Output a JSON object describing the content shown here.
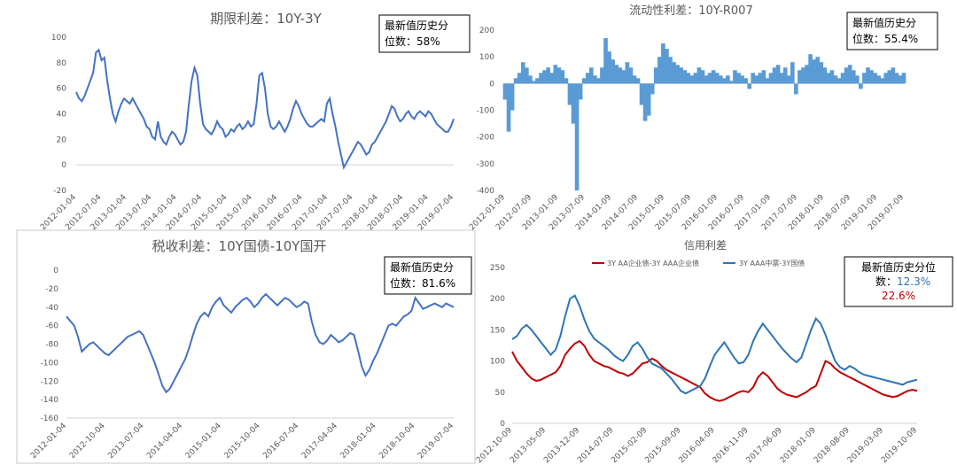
{
  "charts": [
    {
      "type": "line",
      "title": "期限利差：10Y-3Y",
      "ylim": [
        -20,
        100
      ],
      "yticks": [
        -20,
        0,
        20,
        40,
        60,
        80,
        100
      ],
      "xticks": [
        "2012-01-04",
        "2012-07-04",
        "2013-01-04",
        "2013-07-04",
        "2014-01-04",
        "2014-07-04",
        "2015-01-04",
        "2015-07-04",
        "2016-01-04",
        "2016-07-04",
        "2017-01-04",
        "2017-07-04",
        "2018-01-04",
        "2018-07-04",
        "2019-01-04",
        "2019-07-04"
      ],
      "annotation": [
        "最新值历史分",
        "位数：58%"
      ],
      "series": [
        {
          "color": "#4472c4",
          "values": [
            57,
            52,
            50,
            54,
            60,
            66,
            72,
            88,
            90,
            82,
            84,
            66,
            52,
            40,
            34,
            42,
            48,
            52,
            50,
            48,
            52,
            48,
            44,
            40,
            36,
            30,
            28,
            22,
            20,
            34,
            22,
            18,
            16,
            22,
            26,
            24,
            20,
            16,
            18,
            26,
            48,
            66,
            76,
            70,
            48,
            32,
            28,
            26,
            24,
            28,
            34,
            30,
            28,
            22,
            24,
            28,
            26,
            30,
            32,
            28,
            30,
            34,
            30,
            32,
            48,
            70,
            72,
            60,
            40,
            30,
            28,
            30,
            34,
            30,
            26,
            30,
            36,
            44,
            50,
            46,
            40,
            36,
            32,
            30,
            30,
            32,
            34,
            36,
            34,
            48,
            52,
            40,
            30,
            18,
            8,
            -2,
            2,
            6,
            10,
            14,
            18,
            16,
            12,
            8,
            10,
            16,
            18,
            22,
            26,
            30,
            34,
            40,
            46,
            44,
            38,
            34,
            36,
            40,
            42,
            38,
            36,
            40,
            42,
            40,
            38,
            42,
            40,
            36,
            32,
            30,
            28,
            26,
            26,
            30,
            36
          ]
        }
      ]
    },
    {
      "type": "area",
      "title": "流动性利差：10Y-R007",
      "ylim": [
        -400,
        200
      ],
      "yticks": [
        -400,
        -300,
        -200,
        -100,
        0,
        100,
        200
      ],
      "xticks": [
        "2012-01-09",
        "2012-07-09",
        "2013-01-09",
        "2013-07-09",
        "2014-01-09",
        "2014-07-09",
        "2015-01-09",
        "2015-07-09",
        "2016-01-09",
        "2016-07-09",
        "2017-01-09",
        "2017-07-09",
        "2018-01-09",
        "2018-07-09",
        "2019-01-09",
        "2019-07-09"
      ],
      "annotation": [
        "最新值历史分",
        "位数：55.4%"
      ],
      "series": [
        {
          "color": "#5b9bd5",
          "values": [
            -60,
            -180,
            -100,
            20,
            40,
            80,
            60,
            30,
            10,
            20,
            40,
            50,
            60,
            40,
            70,
            60,
            50,
            20,
            -80,
            -150,
            -400,
            -60,
            20,
            40,
            60,
            30,
            20,
            60,
            170,
            120,
            90,
            70,
            60,
            50,
            80,
            60,
            30,
            20,
            -80,
            -140,
            -120,
            -40,
            60,
            100,
            150,
            130,
            100,
            80,
            70,
            60,
            50,
            40,
            30,
            40,
            60,
            50,
            30,
            40,
            50,
            40,
            30,
            20,
            30,
            10,
            50,
            40,
            30,
            20,
            -20,
            40,
            30,
            40,
            50,
            20,
            40,
            60,
            70,
            40,
            60,
            30,
            80,
            -40,
            50,
            60,
            70,
            110,
            90,
            100,
            80,
            60,
            40,
            50,
            30,
            20,
            40,
            60,
            70,
            50,
            30,
            -20,
            40,
            60,
            50,
            40,
            30,
            20,
            40,
            50,
            60,
            40,
            30,
            40
          ]
        }
      ]
    },
    {
      "type": "line",
      "title": "税收利差：10Y国债-10Y国开",
      "ylim": [
        -160,
        0
      ],
      "yticks": [
        0,
        -20,
        -40,
        -60,
        -80,
        -100,
        -120,
        -140,
        -160
      ],
      "xticks": [
        "2012-01-04",
        "2012-10-04",
        "2013-07-04",
        "2014-04-04",
        "2015-01-04",
        "2015-10-04",
        "2016-07-04",
        "2017-04-04",
        "2018-01-04",
        "2018-10-04",
        "2019-07-04"
      ],
      "annotation": [
        "最新值历史分",
        "位数：81.6%"
      ],
      "series": [
        {
          "color": "#4472c4",
          "values": [
            -50,
            -55,
            -60,
            -72,
            -88,
            -84,
            -80,
            -78,
            -82,
            -86,
            -90,
            -92,
            -88,
            -84,
            -80,
            -76,
            -72,
            -70,
            -68,
            -66,
            -70,
            -80,
            -90,
            -100,
            -112,
            -125,
            -132,
            -128,
            -120,
            -112,
            -104,
            -96,
            -84,
            -70,
            -58,
            -50,
            -46,
            -50,
            -40,
            -34,
            -30,
            -38,
            -42,
            -46,
            -40,
            -36,
            -32,
            -30,
            -34,
            -40,
            -36,
            -30,
            -26,
            -30,
            -34,
            -38,
            -34,
            -30,
            -32,
            -36,
            -40,
            -38,
            -34,
            -36,
            -56,
            -70,
            -78,
            -80,
            -76,
            -70,
            -74,
            -78,
            -76,
            -72,
            -68,
            -70,
            -86,
            -104,
            -114,
            -108,
            -98,
            -90,
            -80,
            -70,
            -60,
            -58,
            -60,
            -55,
            -50,
            -48,
            -44,
            -30,
            -36,
            -42,
            -40,
            -38,
            -36,
            -38,
            -40,
            -36,
            -38,
            -40
          ]
        }
      ]
    },
    {
      "type": "line",
      "title": "信用利差",
      "ylim": [
        0,
        250
      ],
      "yticks": [
        0,
        50,
        100,
        150,
        200,
        250
      ],
      "xticks": [
        "2012-10-09",
        "2013-05-09",
        "2013-12-09",
        "2014-07-09",
        "2015-02-09",
        "2015-09-09",
        "2016-04-09",
        "2016-11-09",
        "2017-06-09",
        "2018-01-09",
        "2018-08-09",
        "2019-03-09",
        "2019-10-09"
      ],
      "legend": [
        "3Y AA企业债-3Y AAA企业债",
        "3Y AAA中票-3Y国债"
      ],
      "annotation": [
        "最新值历史分位",
        "数：",
        "12.3%",
        "22.6%"
      ],
      "series": [
        {
          "name": "3Y AA企业债-3Y AAA企业债",
          "color": "#c00000",
          "values": [
            115,
            100,
            90,
            80,
            72,
            68,
            70,
            74,
            78,
            82,
            92,
            110,
            120,
            128,
            132,
            124,
            110,
            100,
            96,
            92,
            90,
            86,
            82,
            80,
            76,
            80,
            88,
            96,
            98,
            104,
            100,
            92,
            86,
            82,
            78,
            74,
            70,
            66,
            62,
            58,
            48,
            42,
            38,
            36,
            38,
            42,
            46,
            50,
            52,
            50,
            58,
            74,
            82,
            76,
            66,
            56,
            50,
            46,
            44,
            42,
            46,
            50,
            56,
            60,
            80,
            100,
            96,
            88,
            82,
            78,
            74,
            70,
            66,
            62,
            58,
            54,
            50,
            46,
            44,
            42,
            44,
            48,
            52,
            54,
            52
          ]
        },
        {
          "name": "3Y AAA中票-3Y国债",
          "color": "#2e75b6",
          "values": [
            135,
            140,
            152,
            158,
            150,
            140,
            130,
            120,
            110,
            118,
            140,
            172,
            200,
            205,
            188,
            166,
            148,
            136,
            130,
            124,
            118,
            110,
            104,
            100,
            110,
            124,
            130,
            120,
            106,
            96,
            92,
            88,
            80,
            72,
            62,
            52,
            48,
            52,
            56,
            60,
            72,
            92,
            110,
            120,
            130,
            118,
            106,
            96,
            98,
            110,
            132,
            148,
            160,
            150,
            140,
            130,
            120,
            112,
            104,
            98,
            106,
            128,
            150,
            168,
            160,
            142,
            120,
            100,
            90,
            86,
            92,
            88,
            82,
            78,
            76,
            74,
            72,
            70,
            68,
            66,
            64,
            62,
            66,
            68,
            70
          ]
        }
      ]
    }
  ]
}
